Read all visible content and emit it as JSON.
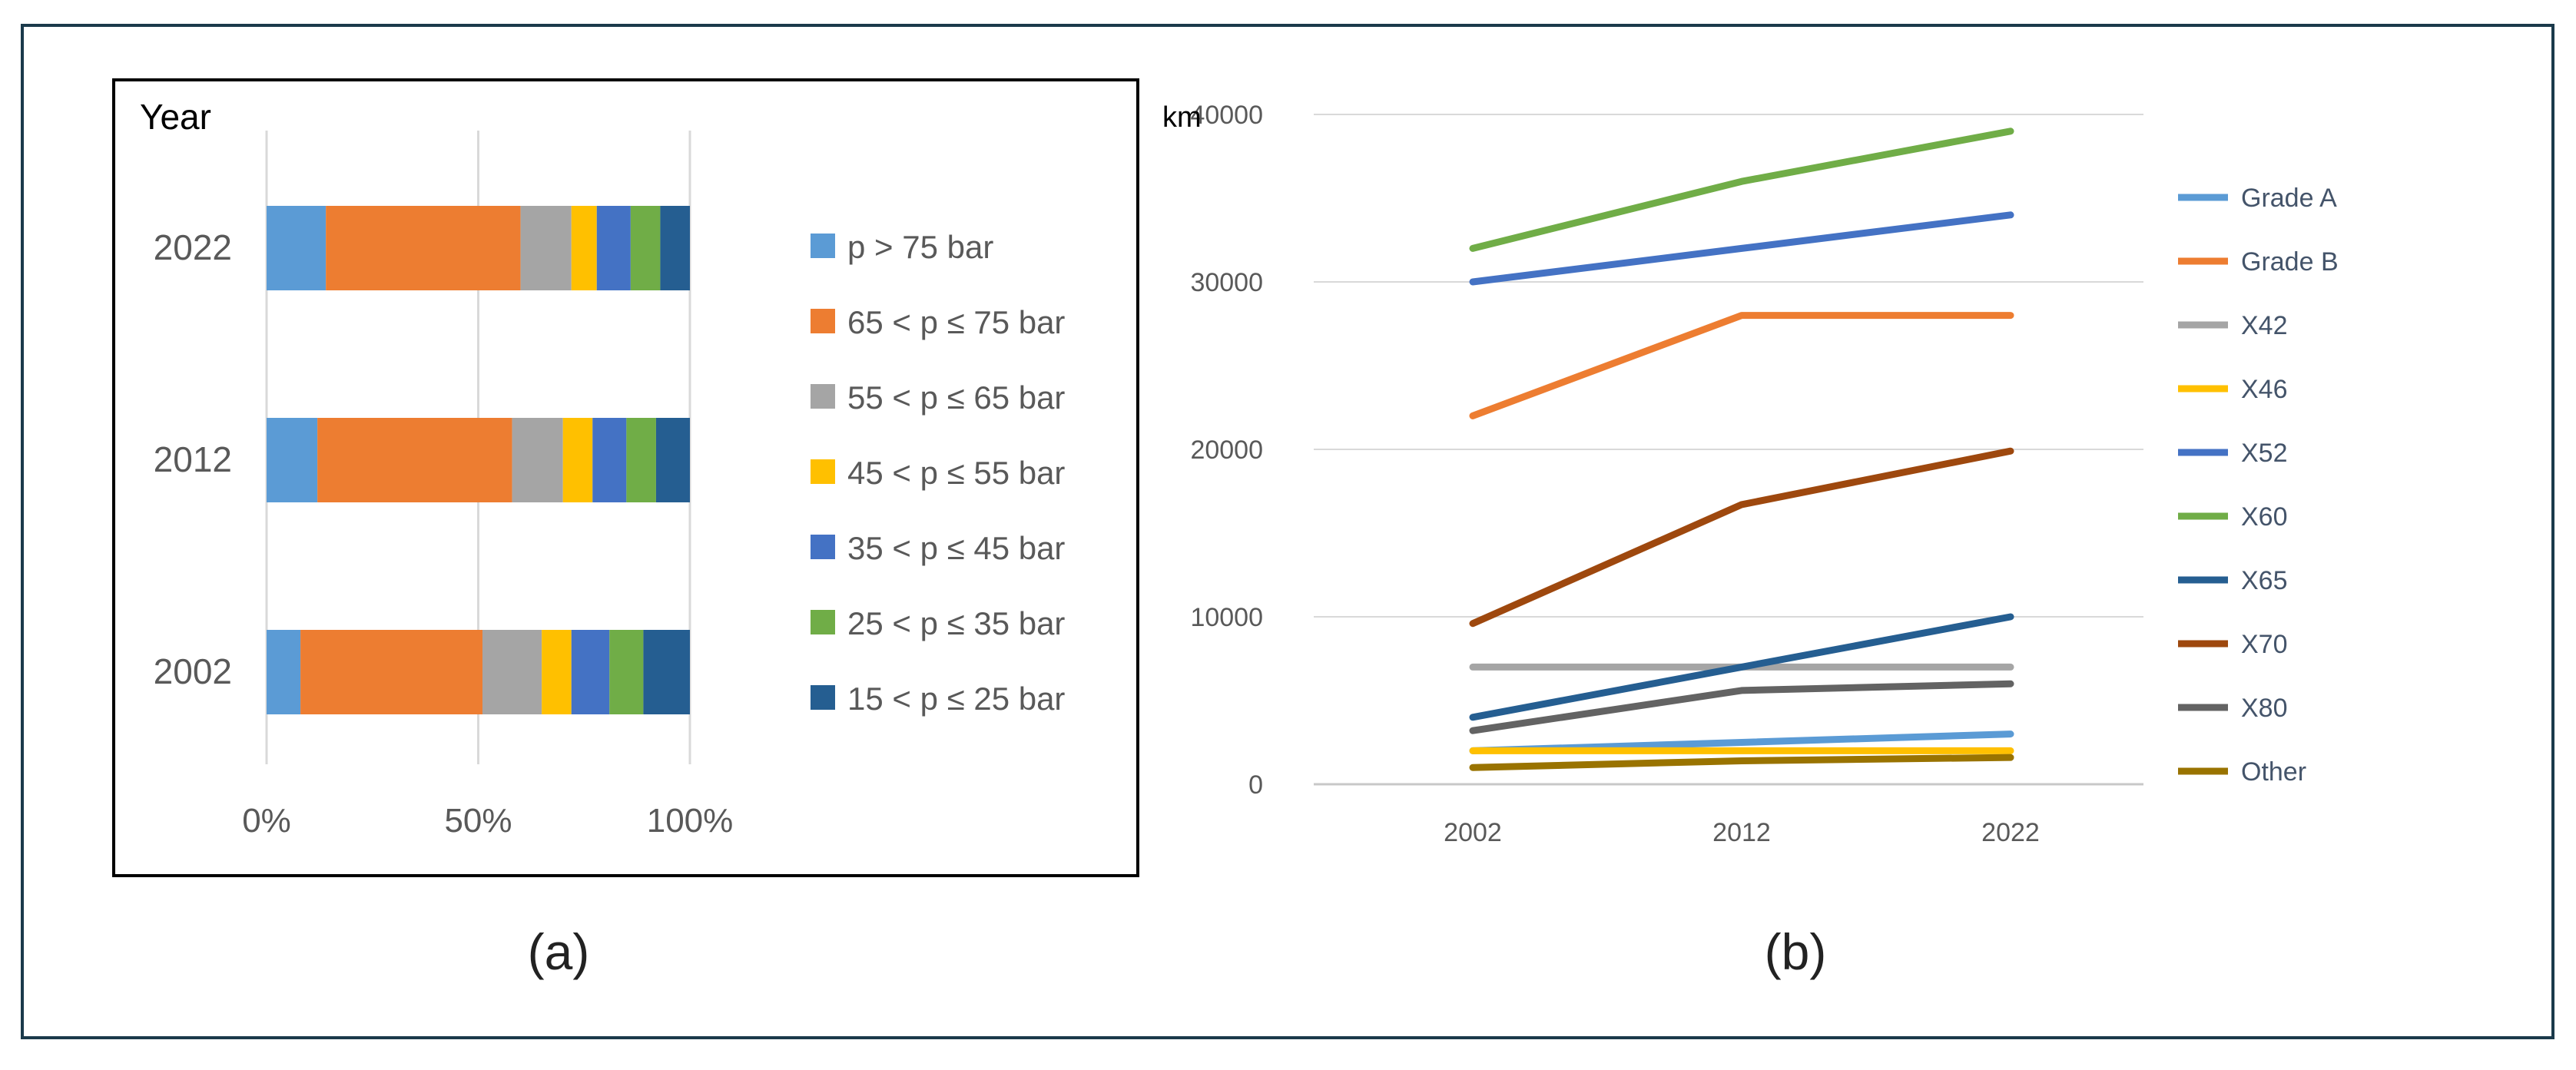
{
  "colors": {
    "frame": "#1b3a4b",
    "grid": "#d9d9d9",
    "axis_text": "#595959",
    "legend_text": "#44546a",
    "caption_text": "#222222"
  },
  "chart_data": [
    {
      "type": "bar",
      "stacked": "percent",
      "orientation": "horizontal",
      "caption": "(a)",
      "ylabel": "Year",
      "categories": [
        "2022",
        "2012",
        "2002"
      ],
      "xlim": [
        0,
        100
      ],
      "xticks": [
        0,
        50,
        100
      ],
      "xtick_labels": [
        "0%",
        "50%",
        "100%"
      ],
      "grid": true,
      "legend_position": "right",
      "series": [
        {
          "name": "p > 75 bar",
          "color": "#5b9bd5",
          "values": [
            14,
            12,
            8
          ]
        },
        {
          "name": "65 < p ≤ 75 bar",
          "color": "#ed7d31",
          "values": [
            46,
            46,
            43
          ]
        },
        {
          "name": "55 < p ≤ 65 bar",
          "color": "#a5a5a5",
          "values": [
            12,
            12,
            14
          ]
        },
        {
          "name": "45 < p ≤ 55 bar",
          "color": "#ffc000",
          "values": [
            6,
            7,
            7
          ]
        },
        {
          "name": "35 < p ≤ 45 bar",
          "color": "#4472c4",
          "values": [
            8,
            8,
            9
          ]
        },
        {
          "name": "25 < p ≤ 35 bar",
          "color": "#70ad47",
          "values": [
            7,
            7,
            8
          ]
        },
        {
          "name": "15 < p ≤ 25 bar",
          "color": "#255e91",
          "values": [
            7,
            8,
            11
          ]
        }
      ]
    },
    {
      "type": "line",
      "caption": "(b)",
      "ylabel": "km",
      "x": [
        "2002",
        "2012",
        "2022"
      ],
      "ylim": [
        0,
        40000
      ],
      "yticks": [
        0,
        10000,
        20000,
        30000,
        40000
      ],
      "ytick_labels": [
        "0",
        "10000",
        "20000",
        "30000",
        "40000"
      ],
      "grid": true,
      "legend_position": "right",
      "series": [
        {
          "name": "Grade A",
          "color": "#5b9bd5",
          "values": [
            2000,
            2500,
            3000
          ]
        },
        {
          "name": "Grade B",
          "color": "#ed7d31",
          "values": [
            22000,
            28000,
            28000
          ]
        },
        {
          "name": "X42",
          "color": "#a5a5a5",
          "values": [
            7000,
            7000,
            7000
          ]
        },
        {
          "name": "X46",
          "color": "#ffc000",
          "values": [
            2000,
            2000,
            2000
          ]
        },
        {
          "name": "X52",
          "color": "#4472c4",
          "values": [
            30000,
            32000,
            34000
          ]
        },
        {
          "name": "X60",
          "color": "#70ad47",
          "values": [
            32000,
            36000,
            39000
          ]
        },
        {
          "name": "X65",
          "color": "#255e91",
          "values": [
            4000,
            7000,
            10000
          ]
        },
        {
          "name": "X70",
          "color": "#9e480e",
          "values": [
            9600,
            16700,
            19900
          ]
        },
        {
          "name": "X80",
          "color": "#636363",
          "values": [
            3200,
            5600,
            6000
          ]
        },
        {
          "name": "Other",
          "color": "#997300",
          "values": [
            1000,
            1400,
            1600
          ]
        }
      ]
    }
  ]
}
